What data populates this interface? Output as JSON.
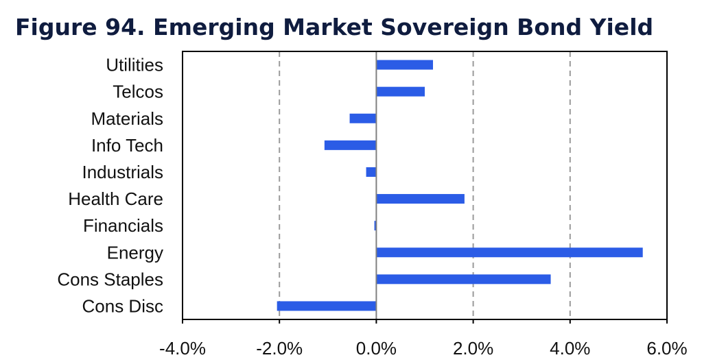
{
  "title": "Figure 94. Emerging Market Sovereign Bond Yield",
  "chart_data": {
    "type": "bar",
    "orientation": "horizontal",
    "categories": [
      "Utilities",
      "Telcos",
      "Materials",
      "Info Tech",
      "Industrials",
      "Health Care",
      "Financials",
      "Energy",
      "Cons Staples",
      "Cons Disc"
    ],
    "values": [
      1.17,
      1.0,
      -0.55,
      -1.07,
      -0.21,
      1.82,
      -0.04,
      5.5,
      3.6,
      -2.05
    ],
    "value_unit": "%",
    "xlim": [
      -4.0,
      6.0
    ],
    "x_ticks": [
      -4.0,
      -2.0,
      0.0,
      2.0,
      4.0,
      6.0
    ],
    "x_tick_labels": [
      "-4.0%",
      "-2.0%",
      "0.0%",
      "2.0%",
      "4.0%",
      "6.0%"
    ],
    "grid": "vertical dashed",
    "bar_color": "#2b5ce6",
    "grid_color": "#9a9a9a",
    "legend": "none"
  }
}
